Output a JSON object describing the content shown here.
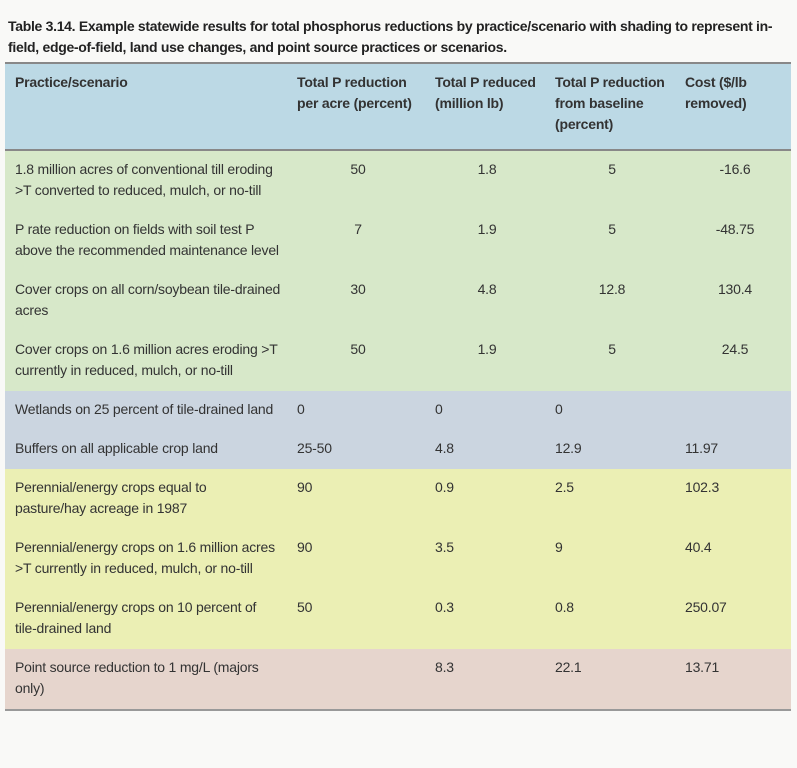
{
  "caption": "Table 3.14. Example statewide results for total phosphorus reductions by practice/scenario with shading to represent in-field, edge-of-field, land use changes, and point source practices or scenarios.",
  "headers": [
    "Practice/scenario",
    "Total P reduction per acre (percent)",
    "Total P reduced (million lb)",
    "Total P reduction from baseline (percent)",
    "Cost ($/lb removed)"
  ],
  "rows": [
    {
      "group": "infield",
      "cells": [
        "1.8 million acres of conventional till eroding >T converted to reduced, mulch, or no-till",
        "50",
        "1.8",
        "5",
        "-16.6"
      ]
    },
    {
      "group": "infield",
      "cells": [
        "P rate reduction on fields with soil test P above the recommended maintenance level",
        "7",
        "1.9",
        "5",
        "-48.75"
      ]
    },
    {
      "group": "infield",
      "cells": [
        "Cover crops on all corn/soybean tile-drained acres",
        "30",
        "4.8",
        "12.8",
        "130.4"
      ]
    },
    {
      "group": "infield",
      "cells": [
        "Cover crops on 1.6 million acres eroding >T currently in reduced, mulch, or no-till",
        "50",
        "1.9",
        "5",
        "24.5"
      ]
    },
    {
      "group": "edge",
      "cells": [
        "Wetlands on 25 percent of tile-drained land",
        "0",
        "0",
        "0",
        ""
      ]
    },
    {
      "group": "edge",
      "cells": [
        "Buffers on all applicable crop land",
        "25-50",
        "4.8",
        "12.9",
        "11.97"
      ]
    },
    {
      "group": "landuse",
      "cells": [
        "Perennial/energy crops equal to pasture/hay acreage in 1987",
        "90",
        "0.9",
        "2.5",
        "102.3"
      ]
    },
    {
      "group": "landuse",
      "cells": [
        "Perennial/energy crops on 1.6 million acres >T currently in reduced, mulch, or no-till",
        "90",
        "3.5",
        "9",
        "40.4"
      ]
    },
    {
      "group": "landuse",
      "cells": [
        "Perennial/energy crops on 10 percent of tile-drained land",
        "50",
        "0.3",
        "0.8",
        "250.07"
      ]
    },
    {
      "group": "point",
      "cells": [
        "Point source reduction to 1 mg/L (majors only)",
        "",
        "8.3",
        "22.1",
        "13.71"
      ]
    }
  ],
  "colors": {
    "header": "#bcd9e5",
    "infield": "#d7e8c9",
    "edge": "#cbd5e0",
    "landuse": "#ebefb4",
    "point": "#e6d5cd"
  }
}
